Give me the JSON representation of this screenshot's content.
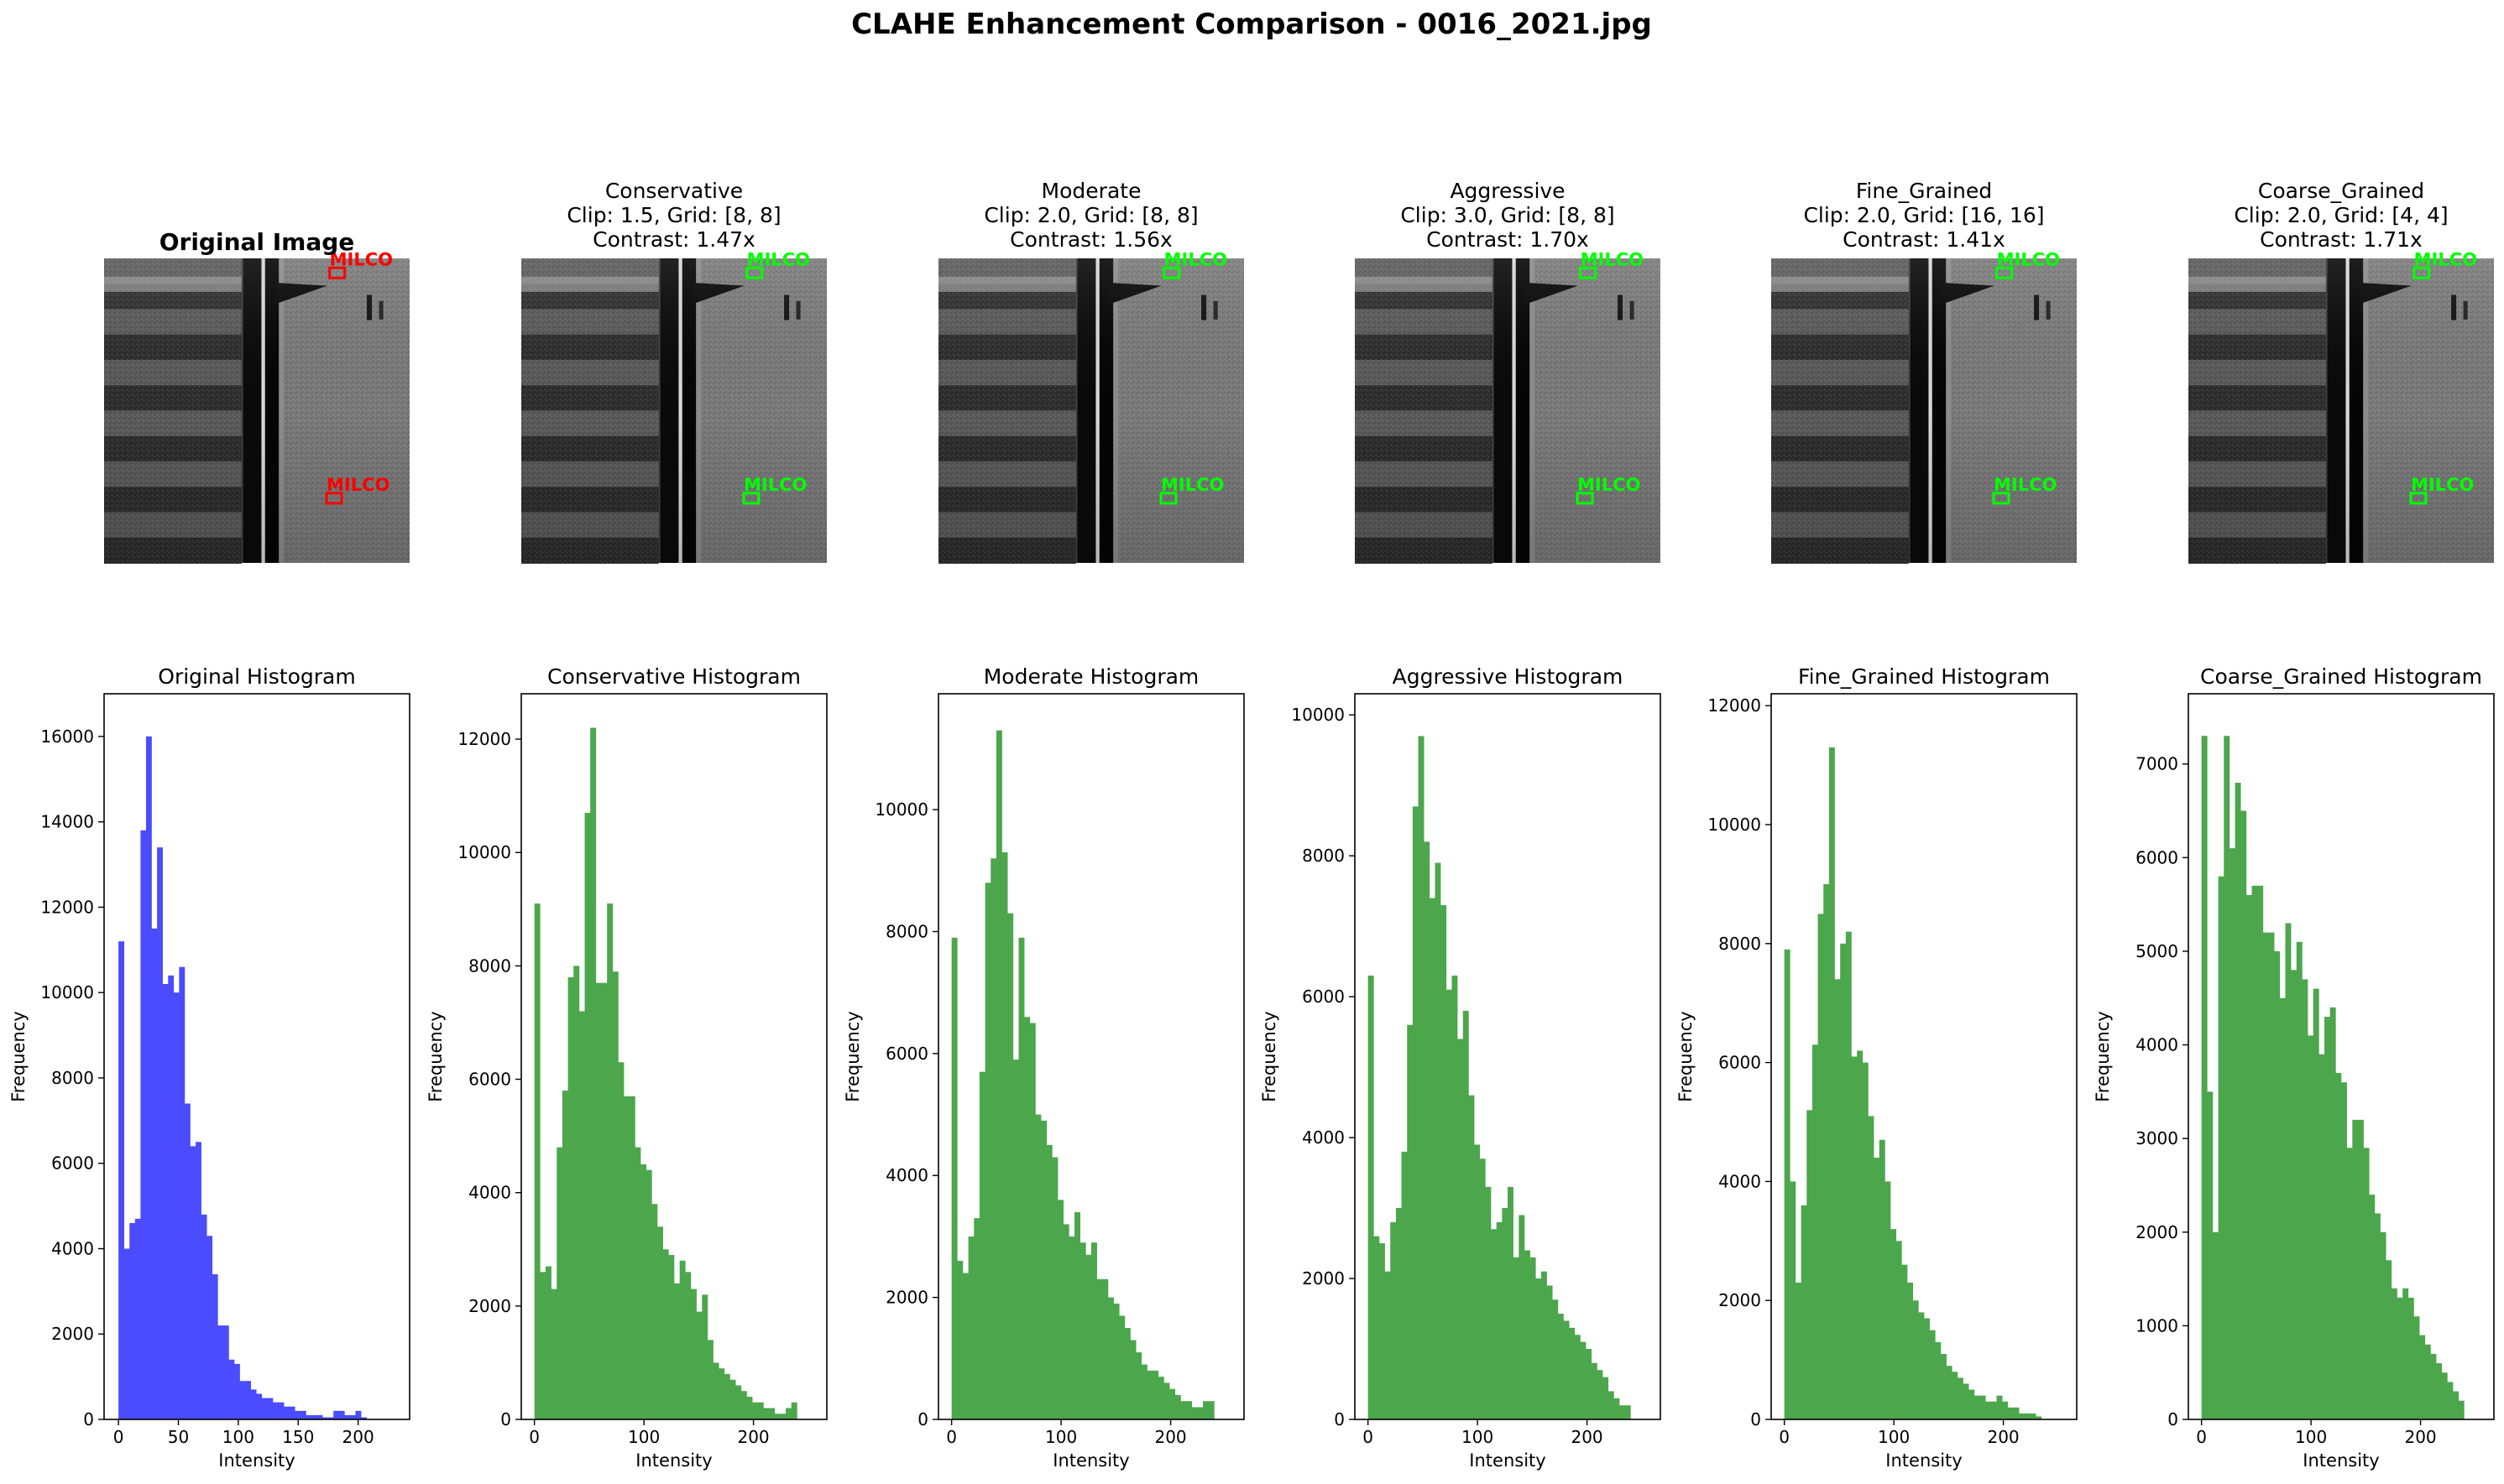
{
  "figure": {
    "title": "CLAHE Enhancement Comparison - 0016_2021.jpg"
  },
  "images": [
    {
      "id": "original",
      "title_lines": [
        "Original Image"
      ],
      "bold": true,
      "box_color": "#ff0000",
      "annotations": [
        {
          "label": "MILCO",
          "u": 0.76,
          "v": 0.02
        },
        {
          "label": "MILCO",
          "u": 0.75,
          "v": 0.76
        }
      ]
    },
    {
      "id": "conservative",
      "title_lines": [
        "Conservative",
        "Clip: 1.5, Grid: [8, 8]",
        "Contrast: 1.47x"
      ],
      "bold": false,
      "box_color": "#00ff00",
      "annotations": [
        {
          "label": "MILCO",
          "u": 0.76,
          "v": 0.02
        },
        {
          "label": "MILCO",
          "u": 0.75,
          "v": 0.76
        }
      ]
    },
    {
      "id": "moderate",
      "title_lines": [
        "Moderate",
        "Clip: 2.0, Grid: [8, 8]",
        "Contrast: 1.56x"
      ],
      "bold": false,
      "box_color": "#00ff00",
      "annotations": [
        {
          "label": "MILCO",
          "u": 0.76,
          "v": 0.02
        },
        {
          "label": "MILCO",
          "u": 0.75,
          "v": 0.76
        }
      ]
    },
    {
      "id": "aggressive",
      "title_lines": [
        "Aggressive",
        "Clip: 3.0, Grid: [8, 8]",
        "Contrast: 1.70x"
      ],
      "bold": false,
      "box_color": "#00ff00",
      "annotations": [
        {
          "label": "MILCO",
          "u": 0.76,
          "v": 0.02
        },
        {
          "label": "MILCO",
          "u": 0.75,
          "v": 0.76
        }
      ]
    },
    {
      "id": "fine_grained",
      "title_lines": [
        "Fine_Grained",
        "Clip: 2.0, Grid: [16, 16]",
        "Contrast: 1.41x"
      ],
      "bold": false,
      "box_color": "#00ff00",
      "annotations": [
        {
          "label": "MILCO",
          "u": 0.76,
          "v": 0.02
        },
        {
          "label": "MILCO",
          "u": 0.75,
          "v": 0.76
        }
      ]
    },
    {
      "id": "coarse_grained",
      "title_lines": [
        "Coarse_Grained",
        "Clip: 2.0, Grid: [4, 4]",
        "Contrast: 1.71x"
      ],
      "bold": false,
      "box_color": "#00ff00",
      "annotations": [
        {
          "label": "MILCO",
          "u": 0.76,
          "v": 0.02
        },
        {
          "label": "MILCO",
          "u": 0.75,
          "v": 0.76
        }
      ]
    }
  ],
  "chart_data": [
    {
      "type": "bar",
      "title": "Original Histogram",
      "xlabel": "Intensity",
      "ylabel": "Frequency",
      "color": "#4b4bff",
      "xlim": [
        -12,
        243
      ],
      "ylim": [
        0,
        17000
      ],
      "xticks": [
        0,
        50,
        100,
        150,
        200
      ],
      "yticks": [
        0,
        2000,
        4000,
        6000,
        8000,
        10000,
        12000,
        14000,
        16000
      ],
      "bin_start": 0,
      "bin_width": 4.6,
      "values": [
        11200,
        4000,
        4600,
        4700,
        13800,
        16000,
        11500,
        13400,
        10200,
        10400,
        10000,
        10600,
        7400,
        6400,
        6500,
        4800,
        4300,
        3400,
        2200,
        2200,
        1400,
        1300,
        900,
        900,
        700,
        600,
        500,
        500,
        400,
        400,
        300,
        300,
        200,
        200,
        100,
        100,
        100,
        50,
        50,
        200,
        200,
        100,
        100,
        200,
        50,
        0
      ]
    },
    {
      "type": "bar",
      "title": "Conservative Histogram",
      "xlabel": "Intensity",
      "ylabel": "Frequency",
      "color": "#4ca64c",
      "xlim": [
        -12,
        267
      ],
      "ylim": [
        0,
        12800
      ],
      "xticks": [
        0,
        100,
        200
      ],
      "yticks": [
        0,
        2000,
        4000,
        6000,
        8000,
        10000,
        12000
      ],
      "bin_start": 0,
      "bin_width": 5.1,
      "values": [
        9100,
        2600,
        2700,
        2300,
        4800,
        5800,
        7800,
        8000,
        7200,
        10700,
        12200,
        7700,
        7700,
        9100,
        7900,
        6300,
        5700,
        5700,
        4800,
        4500,
        4400,
        3800,
        3400,
        3000,
        2900,
        2400,
        2800,
        2600,
        2300,
        1900,
        2200,
        1400,
        1000,
        900,
        800,
        700,
        600,
        500,
        400,
        300,
        300,
        200,
        200,
        100,
        100,
        200,
        300,
        0
      ]
    },
    {
      "type": "bar",
      "title": "Moderate Histogram",
      "xlabel": "Intensity",
      "ylabel": "Frequency",
      "color": "#4ca64c",
      "xlim": [
        -12,
        267
      ],
      "ylim": [
        0,
        11900
      ],
      "xticks": [
        0,
        100,
        200
      ],
      "yticks": [
        0,
        2000,
        4000,
        6000,
        8000,
        10000
      ],
      "bin_start": 0,
      "bin_width": 5.1,
      "values": [
        7900,
        2600,
        2400,
        3000,
        3300,
        5700,
        8800,
        9200,
        11300,
        9300,
        8300,
        5900,
        7900,
        6600,
        6500,
        5000,
        4900,
        4500,
        4300,
        3600,
        3200,
        3000,
        3400,
        2900,
        2700,
        2900,
        2300,
        2300,
        2000,
        1900,
        1700,
        1500,
        1300,
        1100,
        900,
        800,
        800,
        700,
        600,
        500,
        400,
        300,
        300,
        200,
        200,
        300,
        300,
        0
      ]
    },
    {
      "type": "bar",
      "title": "Aggressive Histogram",
      "xlabel": "Intensity",
      "ylabel": "Frequency",
      "color": "#4ca64c",
      "xlim": [
        -12,
        267
      ],
      "ylim": [
        0,
        10300
      ],
      "xticks": [
        0,
        100,
        200
      ],
      "yticks": [
        0,
        2000,
        4000,
        6000,
        8000,
        10000
      ],
      "bin_start": 0,
      "bin_width": 5.1,
      "values": [
        6300,
        2600,
        2500,
        2100,
        2800,
        3000,
        3800,
        5600,
        8700,
        9700,
        8200,
        7400,
        7900,
        7300,
        6100,
        6300,
        5400,
        5800,
        4600,
        3900,
        3700,
        3300,
        2700,
        2800,
        3000,
        3300,
        2300,
        2900,
        2400,
        2300,
        2000,
        2100,
        1900,
        1700,
        1500,
        1400,
        1300,
        1200,
        1100,
        1000,
        800,
        700,
        600,
        400,
        300,
        200,
        200,
        0
      ]
    },
    {
      "type": "bar",
      "title": "Fine_Grained Histogram",
      "xlabel": "Intensity",
      "ylabel": "Frequency",
      "color": "#4ca64c",
      "xlim": [
        -12,
        267
      ],
      "ylim": [
        0,
        12200
      ],
      "xticks": [
        0,
        100,
        200
      ],
      "yticks": [
        0,
        2000,
        4000,
        6000,
        8000,
        10000,
        12000
      ],
      "bin_start": 0,
      "bin_width": 5.1,
      "values": [
        7900,
        4000,
        2300,
        3600,
        5200,
        6300,
        8500,
        9000,
        11300,
        7400,
        8000,
        8200,
        6100,
        6200,
        6000,
        5100,
        4400,
        4700,
        4000,
        3200,
        3000,
        2600,
        2300,
        2000,
        1800,
        1700,
        1500,
        1300,
        1100,
        900,
        800,
        700,
        600,
        500,
        400,
        400,
        300,
        300,
        400,
        300,
        200,
        200,
        100,
        100,
        100,
        50,
        0,
        0
      ]
    },
    {
      "type": "bar",
      "title": "Coarse_Grained Histogram",
      "xlabel": "Intensity",
      "ylabel": "Frequency",
      "color": "#4ca64c",
      "xlim": [
        -12,
        267
      ],
      "ylim": [
        0,
        7750
      ],
      "xticks": [
        0,
        100,
        200
      ],
      "yticks": [
        0,
        1000,
        2000,
        3000,
        4000,
        5000,
        6000,
        7000
      ],
      "bin_start": 0,
      "bin_width": 5.1,
      "values": [
        7300,
        3500,
        2000,
        5800,
        7300,
        6100,
        6800,
        6500,
        5600,
        5700,
        5700,
        5200,
        5200,
        5000,
        4500,
        5300,
        4800,
        5100,
        4700,
        4100,
        4600,
        3900,
        4300,
        4400,
        3700,
        3600,
        2900,
        3200,
        3200,
        2900,
        2400,
        2200,
        2000,
        1700,
        1400,
        1300,
        1400,
        1300,
        1100,
        900,
        800,
        700,
        600,
        500,
        400,
        300,
        200,
        0
      ]
    }
  ]
}
